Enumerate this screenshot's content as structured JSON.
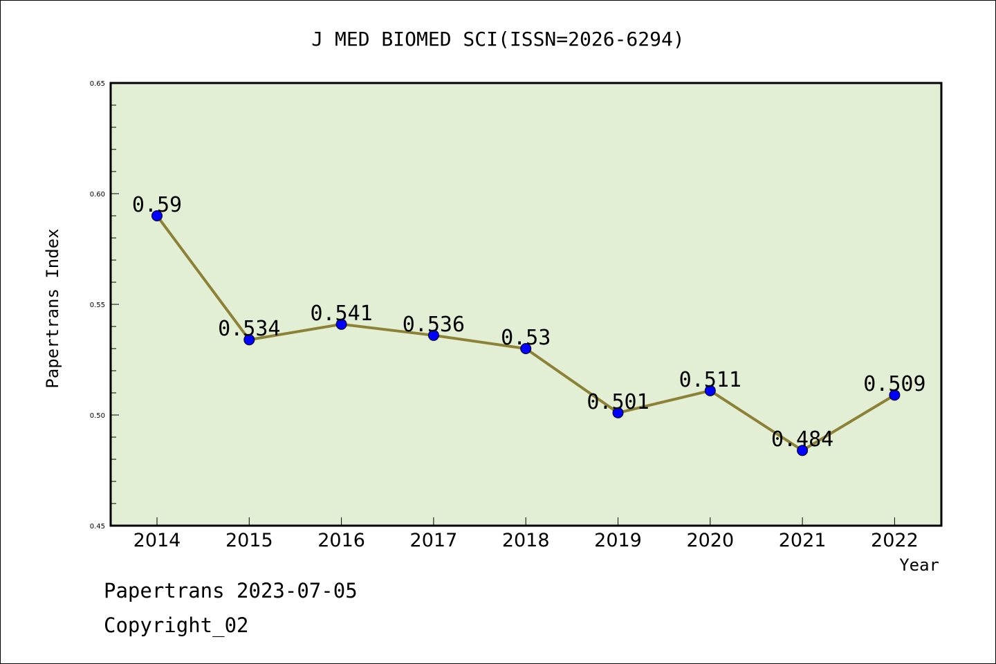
{
  "chart_data": {
    "type": "line",
    "title": "J MED BIOMED SCI(ISSN=2026-6294)",
    "xlabel": "Year",
    "ylabel": "Papertrans Index",
    "categories": [
      "2014",
      "2015",
      "2016",
      "2017",
      "2018",
      "2019",
      "2020",
      "2021",
      "2022"
    ],
    "values": [
      0.59,
      0.534,
      0.541,
      0.536,
      0.53,
      0.501,
      0.511,
      0.484,
      0.509
    ],
    "data_labels": [
      "0.59",
      "0.534",
      "0.541",
      "0.536",
      "0.53",
      "0.501",
      "0.511",
      "0.484",
      "0.509"
    ],
    "ylim": [
      0.45,
      0.65
    ],
    "yticks": [
      "0.45",
      "0.50",
      "0.55",
      "0.60",
      "0.65"
    ],
    "grid": false,
    "colors": {
      "plot_background": "#e2efd4",
      "line": "#8c8237",
      "marker": "#0000ff"
    }
  },
  "footer": {
    "line1": "Papertrans 2023-07-05",
    "line2": "Copyright_02"
  }
}
